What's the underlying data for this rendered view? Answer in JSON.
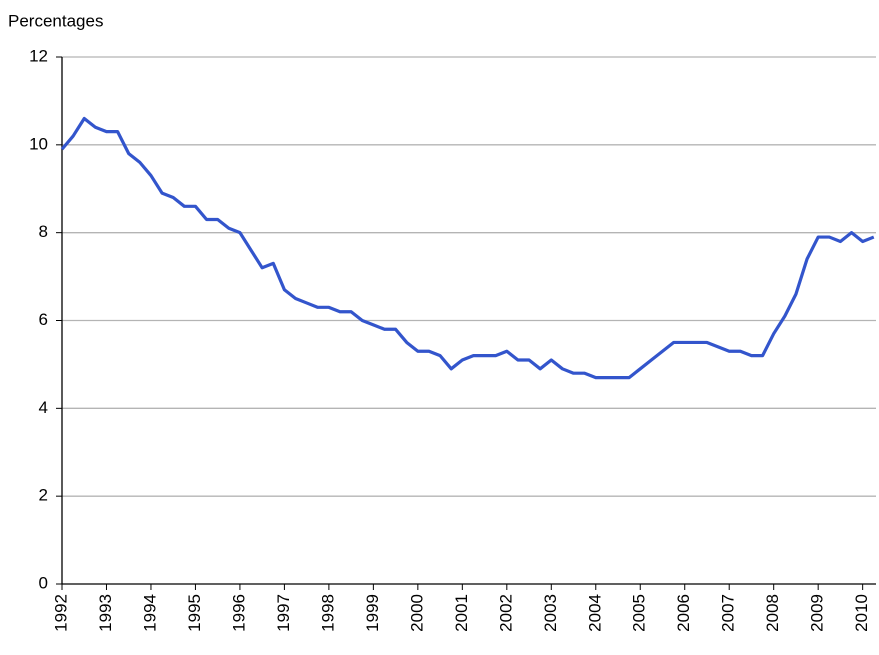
{
  "chart_data": {
    "type": "line",
    "y_label": "Percentages",
    "x": [
      1992,
      1992.25,
      1992.5,
      1992.75,
      1993,
      1993.25,
      1993.5,
      1993.75,
      1994,
      1994.25,
      1994.5,
      1994.75,
      1995,
      1995.25,
      1995.5,
      1995.75,
      1996,
      1996.25,
      1996.5,
      1996.75,
      1997,
      1997.25,
      1997.5,
      1997.75,
      1998,
      1998.25,
      1998.5,
      1998.75,
      1999,
      1999.25,
      1999.5,
      1999.75,
      2000,
      2000.25,
      2000.5,
      2000.75,
      2001,
      2001.25,
      2001.5,
      2001.75,
      2002,
      2002.25,
      2002.5,
      2002.75,
      2003,
      2003.25,
      2003.5,
      2003.75,
      2004,
      2004.25,
      2004.5,
      2004.75,
      2005,
      2005.25,
      2005.5,
      2005.75,
      2006,
      2006.25,
      2006.5,
      2006.75,
      2007,
      2007.25,
      2007.5,
      2007.75,
      2008,
      2008.25,
      2008.5,
      2008.75,
      2009,
      2009.25,
      2009.5,
      2009.75,
      2010,
      2010.25
    ],
    "series": [
      {
        "color": "#3355cc",
        "values": [
          9.9,
          10.2,
          10.6,
          10.4,
          10.3,
          10.3,
          9.8,
          9.6,
          9.3,
          8.9,
          8.8,
          8.6,
          8.6,
          8.3,
          8.3,
          8.1,
          8.0,
          7.6,
          7.2,
          7.3,
          6.7,
          6.5,
          6.4,
          6.3,
          6.3,
          6.2,
          6.2,
          6.0,
          5.9,
          5.8,
          5.8,
          5.5,
          5.3,
          5.3,
          5.2,
          4.9,
          5.1,
          5.2,
          5.2,
          5.2,
          5.3,
          5.1,
          5.1,
          4.9,
          5.1,
          4.9,
          4.8,
          4.8,
          4.7,
          4.7,
          4.7,
          4.7,
          4.9,
          5.1,
          5.3,
          5.5,
          5.5,
          5.5,
          5.5,
          5.4,
          5.3,
          5.3,
          5.2,
          5.2,
          5.7,
          6.1,
          6.6,
          7.4,
          7.9,
          7.9,
          7.8,
          8.0,
          7.8,
          7.9
        ]
      }
    ],
    "xlim": [
      1992,
      2010.3
    ],
    "xticks": [
      1992,
      1993,
      1994,
      1995,
      1996,
      1997,
      1998,
      1999,
      2000,
      2001,
      2002,
      2003,
      2004,
      2005,
      2006,
      2007,
      2008,
      2009,
      2010
    ],
    "ylim": [
      0,
      12
    ],
    "yticks": [
      0,
      2,
      4,
      6,
      8,
      10,
      12
    ],
    "grid": true
  }
}
